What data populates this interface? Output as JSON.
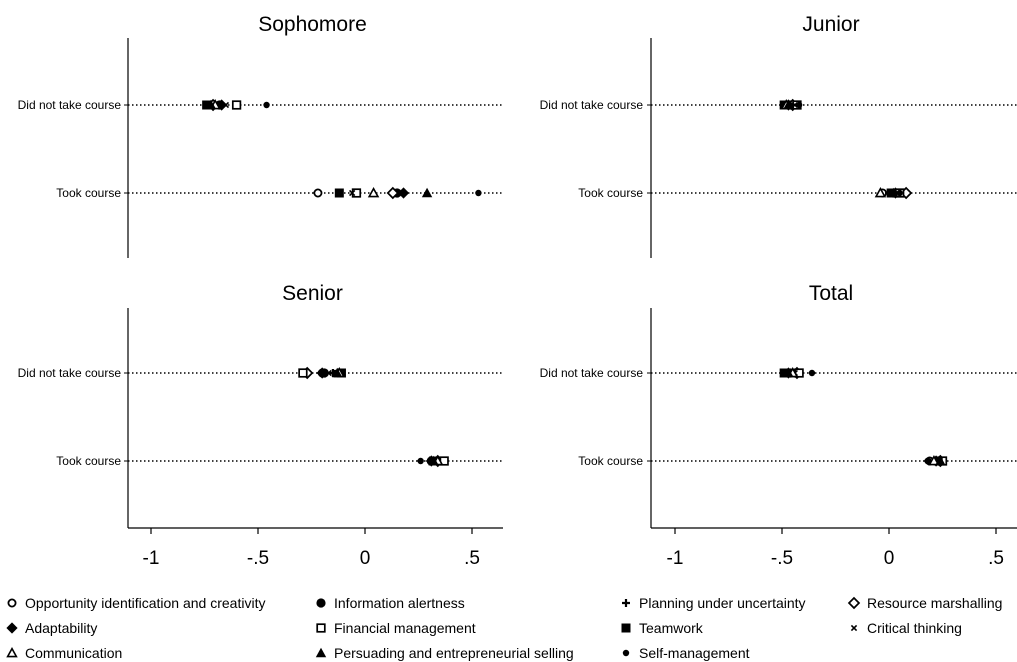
{
  "figure": {
    "legend": [
      {
        "marker": "circle-open",
        "label": "Opportunity identification and creativity"
      },
      {
        "marker": "circle-filled",
        "label": "Information alertness"
      },
      {
        "marker": "plus",
        "label": "Planning under uncertainty"
      },
      {
        "marker": "diamond-open",
        "label": "Resource marshalling"
      },
      {
        "marker": "diamond-filled",
        "label": "Adaptability"
      },
      {
        "marker": "square-open",
        "label": "Financial management"
      },
      {
        "marker": "square-filled",
        "label": "Teamwork"
      },
      {
        "marker": "x-small",
        "label": "Critical thinking"
      },
      {
        "marker": "triangle-open",
        "label": "Communication"
      },
      {
        "marker": "triangle-filled",
        "label": "Persuading and entrepreneurial selling"
      },
      {
        "marker": "dot-small",
        "label": "Self-management"
      }
    ]
  },
  "chart_data": [
    {
      "type": "scatter",
      "title": "Sophomore",
      "categories": [
        "Did not take course",
        "Took course"
      ],
      "xlim": [
        -1.1,
        0.63
      ],
      "xticks": [
        -1,
        -0.5,
        0,
        0.5
      ],
      "xtick_labels": [
        "-1",
        "-.5",
        "0",
        ".5"
      ],
      "series": [
        {
          "name": "Opportunity identification and creativity",
          "values": [
            -0.6,
            -0.22
          ]
        },
        {
          "name": "Information alertness",
          "values": [
            -0.68,
            0.15
          ]
        },
        {
          "name": "Planning under uncertainty",
          "values": [
            -0.72,
            -0.04
          ]
        },
        {
          "name": "Resource marshalling",
          "values": [
            -0.71,
            0.13
          ]
        },
        {
          "name": "Adaptability",
          "values": [
            -0.67,
            0.18
          ]
        },
        {
          "name": "Financial management",
          "values": [
            -0.6,
            -0.04
          ]
        },
        {
          "name": "Teamwork",
          "values": [
            -0.74,
            -0.12
          ]
        },
        {
          "name": "Critical thinking",
          "values": [
            -0.65,
            -0.06
          ]
        },
        {
          "name": "Communication",
          "values": [
            -0.7,
            0.04
          ]
        },
        {
          "name": "Persuading and entrepreneurial selling",
          "values": [
            -0.72,
            0.29
          ]
        },
        {
          "name": "Self-management",
          "values": [
            -0.46,
            0.53
          ]
        }
      ]
    },
    {
      "type": "scatter",
      "title": "Junior",
      "categories": [
        "Did not take course",
        "Took course"
      ],
      "xlim": [
        -1.1,
        0.63
      ],
      "xticks": [
        -1,
        -0.5,
        0,
        0.5
      ],
      "xtick_labels": [
        "-1",
        "-.5",
        "0",
        ".5"
      ],
      "series": [
        {
          "name": "Opportunity identification and creativity",
          "values": [
            -0.44,
            -0.03
          ]
        },
        {
          "name": "Information alertness",
          "values": [
            -0.46,
            0.02
          ]
        },
        {
          "name": "Planning under uncertainty",
          "values": [
            -0.47,
            0.0
          ]
        },
        {
          "name": "Resource marshalling",
          "values": [
            -0.45,
            0.08
          ]
        },
        {
          "name": "Adaptability",
          "values": [
            -0.47,
            0.03
          ]
        },
        {
          "name": "Financial management",
          "values": [
            -0.43,
            0.05
          ]
        },
        {
          "name": "Teamwork",
          "values": [
            -0.49,
            0.01
          ]
        },
        {
          "name": "Critical thinking",
          "values": [
            -0.44,
            0.04
          ]
        },
        {
          "name": "Communication",
          "values": [
            -0.48,
            -0.04
          ]
        },
        {
          "name": "Persuading and entrepreneurial selling",
          "values": [
            -0.47,
            0.02
          ]
        },
        {
          "name": "Self-management",
          "values": [
            -0.42,
            0.05
          ]
        }
      ]
    },
    {
      "type": "scatter",
      "title": "Senior",
      "categories": [
        "Did not take course",
        "Took course"
      ],
      "xlim": [
        -1.1,
        0.63
      ],
      "xticks": [
        -1,
        -0.5,
        0,
        0.5
      ],
      "xtick_labels": [
        "-1",
        "-.5",
        "0",
        ".5"
      ],
      "series": [
        {
          "name": "Opportunity identification and creativity",
          "values": [
            -0.2,
            0.31
          ]
        },
        {
          "name": "Information alertness",
          "values": [
            -0.19,
            0.31
          ]
        },
        {
          "name": "Planning under uncertainty",
          "values": [
            -0.15,
            0.32
          ]
        },
        {
          "name": "Resource marshalling",
          "values": [
            -0.27,
            0.34
          ]
        },
        {
          "name": "Adaptability",
          "values": [
            -0.2,
            0.31
          ]
        },
        {
          "name": "Financial management",
          "values": [
            -0.29,
            0.37
          ]
        },
        {
          "name": "Teamwork",
          "values": [
            -0.11,
            0.32
          ]
        },
        {
          "name": "Critical thinking",
          "values": [
            -0.17,
            0.33
          ]
        },
        {
          "name": "Communication",
          "values": [
            -0.12,
            0.34
          ]
        },
        {
          "name": "Persuading and entrepreneurial selling",
          "values": [
            -0.13,
            0.32
          ]
        },
        {
          "name": "Self-management",
          "values": [
            -0.14,
            0.26
          ]
        }
      ]
    },
    {
      "type": "scatter",
      "title": "Total",
      "categories": [
        "Did not take course",
        "Took course"
      ],
      "xlim": [
        -1.1,
        0.63
      ],
      "xticks": [
        -1,
        -0.5,
        0,
        0.5
      ],
      "xtick_labels": [
        "-1",
        "-.5",
        "0",
        ".5"
      ],
      "series": [
        {
          "name": "Opportunity identification and creativity",
          "values": [
            -0.44,
            0.19
          ]
        },
        {
          "name": "Information alertness",
          "values": [
            -0.46,
            0.22
          ]
        },
        {
          "name": "Planning under uncertainty",
          "values": [
            -0.47,
            0.21
          ]
        },
        {
          "name": "Resource marshalling",
          "values": [
            -0.43,
            0.24
          ]
        },
        {
          "name": "Adaptability",
          "values": [
            -0.47,
            0.22
          ]
        },
        {
          "name": "Financial management",
          "values": [
            -0.42,
            0.25
          ]
        },
        {
          "name": "Teamwork",
          "values": [
            -0.49,
            0.23
          ]
        },
        {
          "name": "Critical thinking",
          "values": [
            -0.44,
            0.2
          ]
        },
        {
          "name": "Communication",
          "values": [
            -0.45,
            0.21
          ]
        },
        {
          "name": "Persuading and entrepreneurial selling",
          "values": [
            -0.47,
            0.24
          ]
        },
        {
          "name": "Self-management",
          "values": [
            -0.36,
            0.18
          ]
        }
      ]
    }
  ]
}
